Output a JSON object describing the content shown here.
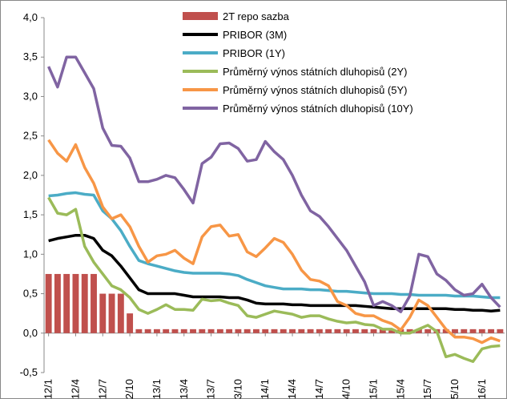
{
  "chart_data": {
    "type": "line",
    "categories": [
      "2012/1",
      null,
      null,
      "2012/4",
      null,
      null,
      "2012/7",
      null,
      null,
      "2012/10",
      null,
      null,
      "2013/1",
      null,
      null,
      "2013/4",
      null,
      null,
      "2013/7",
      null,
      null,
      "2013/10",
      null,
      null,
      "2014/1",
      null,
      null,
      "2014/4",
      null,
      null,
      "2014/7",
      null,
      null,
      "2014/10",
      null,
      null,
      "2015/1",
      null,
      null,
      "2015/4",
      null,
      null,
      "2015/7",
      null,
      null,
      "2015/10",
      null,
      null,
      "2016/1",
      null,
      null
    ],
    "ylim": [
      -0.5,
      4.0
    ],
    "yticks": [
      {
        "value": -0.5,
        "label": "-0,5"
      },
      {
        "value": 0,
        "label": "0,0"
      },
      {
        "value": 0.5,
        "label": "0,5"
      },
      {
        "value": 1.0,
        "label": "1,0"
      },
      {
        "value": 1.5,
        "label": "1,5"
      },
      {
        "value": 2.0,
        "label": "2,0"
      },
      {
        "value": 2.5,
        "label": "2,5"
      },
      {
        "value": 3.0,
        "label": "3,0"
      },
      {
        "value": 3.5,
        "label": "3,5"
      },
      {
        "value": 4.0,
        "label": "4,0"
      }
    ],
    "series": [
      {
        "name": "2T repo sazba",
        "type": "bar",
        "color": "#c0504d",
        "values": [
          0.75,
          0.75,
          0.75,
          0.75,
          0.75,
          0.75,
          0.5,
          0.5,
          0.5,
          0.25,
          0.05,
          0.05,
          0.05,
          0.05,
          0.05,
          0.05,
          0.05,
          0.05,
          0.05,
          0.05,
          0.05,
          0.05,
          0.05,
          0.05,
          0.05,
          0.05,
          0.05,
          0.05,
          0.05,
          0.05,
          0.05,
          0.05,
          0.05,
          0.05,
          0.05,
          0.05,
          0.05,
          0.05,
          0.05,
          0.05,
          0.05,
          0.05,
          0.05,
          0.05,
          0.05,
          0.05,
          0.05,
          0.05,
          0.05,
          0.05,
          0.05
        ]
      },
      {
        "name": "PRIBOR (3M)",
        "color": "#000000",
        "values": [
          1.17,
          1.2,
          1.22,
          1.24,
          1.24,
          1.2,
          1.05,
          0.98,
          0.85,
          0.7,
          0.55,
          0.5,
          0.5,
          0.5,
          0.5,
          0.48,
          0.46,
          0.46,
          0.46,
          0.46,
          0.45,
          0.45,
          0.42,
          0.38,
          0.37,
          0.37,
          0.37,
          0.36,
          0.36,
          0.35,
          0.35,
          0.35,
          0.35,
          0.35,
          0.35,
          0.34,
          0.33,
          0.32,
          0.31,
          0.31,
          0.31,
          0.31,
          0.31,
          0.31,
          0.31,
          0.3,
          0.3,
          0.29,
          0.29,
          0.28,
          0.29
        ]
      },
      {
        "name": "PRIBOR (1Y)",
        "color": "#4bacc6",
        "values": [
          1.74,
          1.75,
          1.77,
          1.78,
          1.76,
          1.75,
          1.55,
          1.45,
          1.3,
          1.1,
          0.92,
          0.88,
          0.85,
          0.82,
          0.79,
          0.77,
          0.76,
          0.76,
          0.76,
          0.76,
          0.75,
          0.73,
          0.68,
          0.64,
          0.6,
          0.58,
          0.56,
          0.56,
          0.56,
          0.55,
          0.55,
          0.54,
          0.53,
          0.53,
          0.52,
          0.51,
          0.5,
          0.5,
          0.5,
          0.49,
          0.49,
          0.48,
          0.48,
          0.48,
          0.48,
          0.47,
          0.47,
          0.47,
          0.46,
          0.45,
          0.45
        ]
      },
      {
        "name": "Průměrný výnos státních dluhopisů (2Y)",
        "color": "#9bbb59",
        "values": [
          1.72,
          1.52,
          1.5,
          1.57,
          1.1,
          0.9,
          0.75,
          0.6,
          0.55,
          0.45,
          0.3,
          0.25,
          0.3,
          0.36,
          0.3,
          0.3,
          0.29,
          0.43,
          0.41,
          0.42,
          0.38,
          0.35,
          0.22,
          0.2,
          0.24,
          0.28,
          0.26,
          0.24,
          0.2,
          0.22,
          0.22,
          0.18,
          0.15,
          0.13,
          0.14,
          0.11,
          0.1,
          0.05,
          0.05,
          0.0,
          0.0,
          0.05,
          0.1,
          0.02,
          -0.3,
          -0.27,
          -0.32,
          -0.36,
          -0.2,
          -0.17,
          -0.16
        ]
      },
      {
        "name": "Průměrný výnos státních dluhopisů (5Y)",
        "color": "#f79646",
        "values": [
          2.45,
          2.28,
          2.18,
          2.39,
          2.1,
          1.9,
          1.6,
          1.45,
          1.5,
          1.35,
          1.1,
          0.9,
          0.98,
          1.0,
          1.05,
          0.95,
          0.88,
          1.22,
          1.35,
          1.37,
          1.23,
          1.25,
          1.03,
          0.97,
          1.08,
          1.2,
          1.15,
          1.0,
          0.8,
          0.68,
          0.66,
          0.6,
          0.4,
          0.35,
          0.25,
          0.22,
          0.22,
          0.16,
          0.12,
          0.04,
          0.2,
          0.42,
          0.35,
          0.2,
          0.05,
          -0.05,
          -0.05,
          -0.07,
          -0.12,
          -0.06,
          -0.1
        ]
      },
      {
        "name": "Průměrný výnos státních dluhopisů (10Y)",
        "color": "#8064a2",
        "values": [
          3.38,
          3.12,
          3.5,
          3.5,
          3.3,
          3.1,
          2.6,
          2.38,
          2.37,
          2.22,
          1.92,
          1.92,
          1.95,
          2.0,
          1.97,
          1.82,
          1.65,
          2.15,
          2.23,
          2.4,
          2.41,
          2.34,
          2.18,
          2.2,
          2.43,
          2.3,
          2.2,
          2.0,
          1.75,
          1.55,
          1.48,
          1.35,
          1.2,
          1.05,
          0.85,
          0.65,
          0.35,
          0.4,
          0.35,
          0.27,
          0.47,
          1.0,
          0.97,
          0.75,
          0.67,
          0.55,
          0.48,
          0.5,
          0.62,
          0.45,
          0.33
        ]
      }
    ]
  }
}
